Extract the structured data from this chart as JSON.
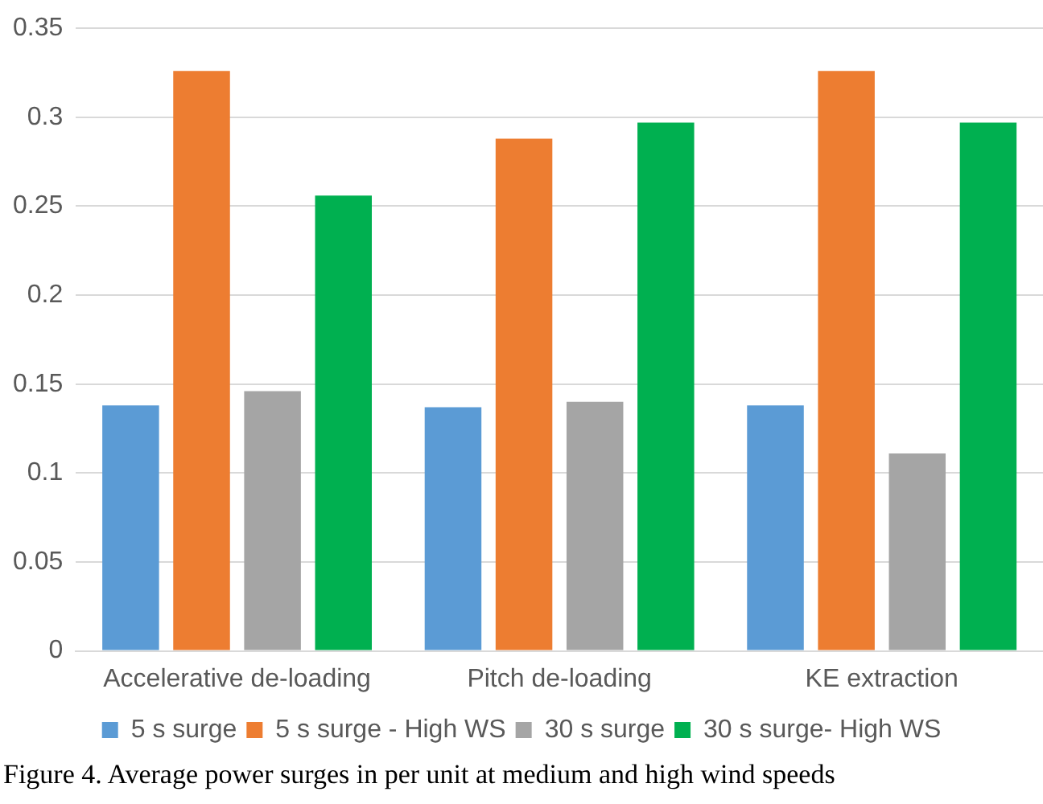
{
  "chart_data": {
    "type": "bar",
    "categories": [
      "Accelerative de-loading",
      "Pitch de-loading",
      "KE extraction"
    ],
    "series": [
      {
        "name": "5 s surge",
        "color": "#5b9bd5",
        "values": [
          0.138,
          0.137,
          0.138
        ]
      },
      {
        "name": "5 s surge - High WS",
        "color": "#ed7d31",
        "values": [
          0.326,
          0.288,
          0.326
        ]
      },
      {
        "name": "30 s surge",
        "color": "#a5a5a5",
        "values": [
          0.146,
          0.14,
          0.111
        ]
      },
      {
        "name": "30 s surge- High WS",
        "color": "#00b050",
        "values": [
          0.256,
          0.297,
          0.297
        ]
      }
    ],
    "ylim": [
      0,
      0.35
    ],
    "yticks": [
      0,
      0.05,
      0.1,
      0.15,
      0.2,
      0.25,
      0.3,
      0.35
    ],
    "grid": "y",
    "legend": "bottom",
    "annotations": [
      "Figure 4. Average power surges in per unit at medium and high wind speeds"
    ]
  }
}
